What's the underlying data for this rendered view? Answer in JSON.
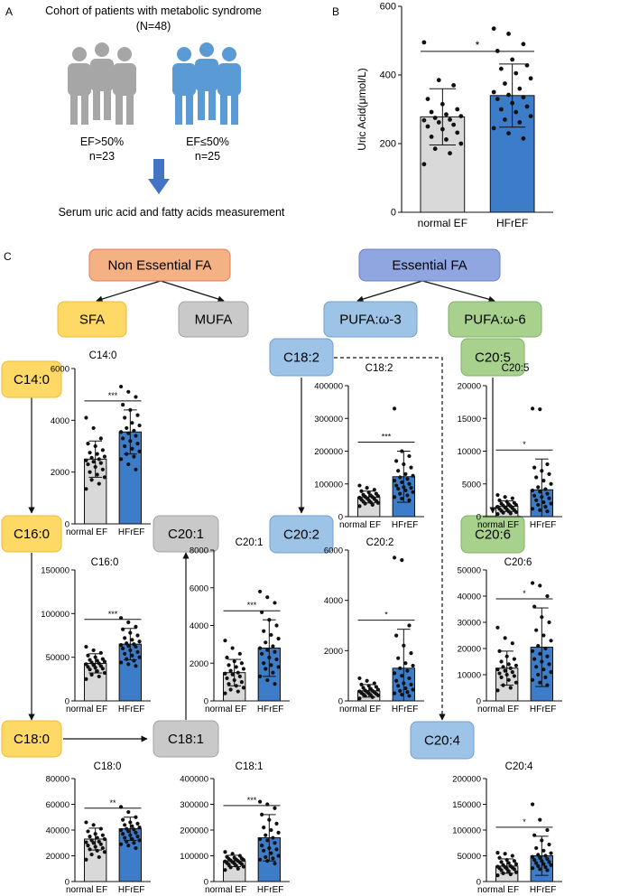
{
  "panel_labels": [
    "A",
    "B",
    "C"
  ],
  "panel_a": {
    "title_line1": "Cohort of patients with metabolic syndrome",
    "title_line2": "(N=48)",
    "group1_line1": "EF>50%",
    "group1_line2": "n=23",
    "group2_line1": "EF≤50%",
    "group2_line2": "n=25",
    "outcome": "Serum uric acid and fatty acids measurement",
    "colors": {
      "group1": "#a6a6a6",
      "group2": "#5b9bd5",
      "arrow": "#4472c4"
    }
  },
  "flow_boxes": [
    {
      "id": "nonessential",
      "label": "Non Essential FA",
      "fill": "#f4b183",
      "stroke": "#e07b5a"
    },
    {
      "id": "essential",
      "label": "Essential FA",
      "fill": "#8fa6e0",
      "stroke": "#6a7fc8"
    },
    {
      "id": "sfa",
      "label": "SFA",
      "fill": "#ffd966",
      "stroke": "#f0b93a"
    },
    {
      "id": "mufa",
      "label": "MUFA",
      "fill": "#c9c9c9",
      "stroke": "#a3a3a3"
    },
    {
      "id": "pufa3",
      "label": "PUFA:ω-3",
      "fill": "#9dc3e6",
      "stroke": "#6f9fcf"
    },
    {
      "id": "pufa6",
      "label": "PUFA:ω-6",
      "fill": "#a9d18e",
      "stroke": "#7fb062"
    },
    {
      "id": "c140",
      "label": "C14:0",
      "fill": "#ffd966",
      "stroke": "#f0b93a"
    },
    {
      "id": "c160",
      "label": "C16:0",
      "fill": "#ffd966",
      "stroke": "#f0b93a"
    },
    {
      "id": "c180",
      "label": "C18:0",
      "fill": "#ffd966",
      "stroke": "#f0b93a"
    },
    {
      "id": "c201",
      "label": "C20:1",
      "fill": "#c9c9c9",
      "stroke": "#a3a3a3"
    },
    {
      "id": "c181",
      "label": "C18:1",
      "fill": "#c9c9c9",
      "stroke": "#a3a3a3"
    },
    {
      "id": "c182",
      "label": "C18:2",
      "fill": "#9dc3e6",
      "stroke": "#6f9fcf"
    },
    {
      "id": "c202",
      "label": "C20:2",
      "fill": "#9dc3e6",
      "stroke": "#6f9fcf"
    },
    {
      "id": "c204",
      "label": "C20:4",
      "fill": "#9dc3e6",
      "stroke": "#6f9fcf"
    },
    {
      "id": "c205",
      "label": "C20:5",
      "fill": "#a9d18e",
      "stroke": "#7fb062"
    },
    {
      "id": "c206",
      "label": "C20:6",
      "fill": "#a9d18e",
      "stroke": "#7fb062"
    }
  ],
  "bar_colors": {
    "normal EF": "#d9d9d9",
    "HFrEF": "#3d7cc9"
  },
  "chart_data": [
    {
      "id": "uric-acid",
      "type": "bar",
      "title": "",
      "ylabel": "Uric Acid(μmol/L)",
      "categories": [
        "normal EF",
        "HFrEF"
      ],
      "values": [
        278,
        340
      ],
      "errors": [
        82,
        92
      ],
      "ylim": [
        0,
        600
      ],
      "yticks": [
        0,
        200,
        400,
        600
      ],
      "yticklabels": [
        "0",
        "200",
        "400",
        "600"
      ],
      "significance": "*",
      "points": [
        [
          495,
          385,
          370,
          330,
          315,
          300,
          292,
          285,
          280,
          275,
          270,
          268,
          262,
          255,
          250,
          242,
          232,
          220,
          212,
          200,
          185,
          172,
          140
        ],
        [
          535,
          520,
          490,
          470,
          445,
          428,
          418,
          405,
          390,
          375,
          360,
          350,
          342,
          335,
          330,
          318,
          308,
          300,
          292,
          280,
          270,
          262,
          245,
          230,
          215
        ]
      ]
    },
    {
      "id": "c14-0",
      "type": "bar",
      "title": "C14:0",
      "ylabel": "",
      "categories": [
        "normal EF",
        "HFrEF"
      ],
      "values": [
        2500,
        3550
      ],
      "errors": [
        700,
        850
      ],
      "ylim": [
        0,
        6000
      ],
      "yticks": [
        0,
        2000,
        4000,
        6000
      ],
      "yticklabels": [
        "0",
        "2000",
        "4000",
        "6000"
      ],
      "significance": "***",
      "points": [
        [
          4100,
          3700,
          3300,
          3100,
          3000,
          2850,
          2750,
          2700,
          2600,
          2550,
          2500,
          2450,
          2400,
          2350,
          2300,
          2200,
          2100,
          2000,
          1900,
          1800,
          1700,
          1550,
          1350
        ],
        [
          5300,
          5100,
          4900,
          4600,
          4400,
          4200,
          4100,
          3900,
          3800,
          3700,
          3600,
          3550,
          3500,
          3400,
          3300,
          3200,
          3100,
          3000,
          2900,
          2800,
          2700,
          2600,
          2500,
          2300,
          2100
        ]
      ]
    },
    {
      "id": "c16-0",
      "type": "bar",
      "title": "C16:0",
      "ylabel": "",
      "categories": [
        "normal EF",
        "HFrEF"
      ],
      "values": [
        43000,
        65000
      ],
      "errors": [
        11000,
        18000
      ],
      "ylim": [
        0,
        150000
      ],
      "yticks": [
        0,
        50000,
        100000,
        150000
      ],
      "yticklabels": [
        "0",
        "50000",
        "100000",
        "150000"
      ],
      "significance": "***",
      "points": [
        [
          62000,
          58000,
          55000,
          52000,
          50000,
          48000,
          47000,
          46000,
          45000,
          44000,
          43000,
          42000,
          41000,
          40000,
          39000,
          38000,
          37000,
          36000,
          34000,
          32000,
          30000,
          28000,
          25000
        ],
        [
          95000,
          90000,
          85000,
          82000,
          78000,
          75000,
          72000,
          70000,
          68000,
          66000,
          65000,
          64000,
          63000,
          62000,
          60000,
          58000,
          56000,
          54000,
          52000,
          50000,
          48000,
          46000,
          44000,
          42000,
          40000
        ]
      ]
    },
    {
      "id": "c18-0",
      "type": "bar",
      "title": "C18:0",
      "ylabel": "",
      "categories": [
        "normal EF",
        "HFrEF"
      ],
      "values": [
        33000,
        41000
      ],
      "errors": [
        8500,
        9000
      ],
      "ylim": [
        0,
        80000
      ],
      "yticks": [
        0,
        20000,
        40000,
        60000,
        80000
      ],
      "yticklabels": [
        "0",
        "20000",
        "40000",
        "60000",
        "80000"
      ],
      "significance": "**",
      "points": [
        [
          46000,
          44000,
          41000,
          39000,
          37000,
          36000,
          35000,
          34000,
          33000,
          32000,
          31000,
          30500,
          30000,
          29000,
          28000,
          27000,
          26000,
          25000,
          24000,
          23000,
          21000,
          19000,
          17000
        ],
        [
          58000,
          54000,
          50000,
          48000,
          46000,
          45000,
          44000,
          43000,
          42000,
          41000,
          40500,
          40000,
          39000,
          38000,
          37000,
          36000,
          35000,
          34000,
          33000,
          32000,
          31000,
          30000,
          29000,
          28000,
          26000
        ]
      ]
    },
    {
      "id": "c20-1",
      "type": "bar",
      "title": "C20:1",
      "ylabel": "",
      "categories": [
        "normal EF",
        "HFrEF"
      ],
      "values": [
        1500,
        2800
      ],
      "errors": [
        700,
        1500
      ],
      "ylim": [
        0,
        8000
      ],
      "yticks": [
        0,
        2000,
        4000,
        6000,
        8000
      ],
      "yticklabels": [
        "0",
        "2000",
        "4000",
        "6000",
        "8000"
      ],
      "significance": "***",
      "points": [
        [
          3200,
          2800,
          2500,
          2300,
          2100,
          2000,
          1900,
          1800,
          1700,
          1600,
          1500,
          1450,
          1400,
          1300,
          1200,
          1100,
          1000,
          900,
          800,
          700,
          600,
          500,
          400
        ],
        [
          5800,
          5500,
          5200,
          4700,
          4300,
          4000,
          3700,
          3500,
          3300,
          3100,
          2900,
          2800,
          2700,
          2600,
          2500,
          2300,
          2200,
          2000,
          1900,
          1800,
          1700,
          1500,
          1300,
          1100,
          900
        ]
      ]
    },
    {
      "id": "c18-1",
      "type": "bar",
      "title": "C18:1",
      "ylabel": "",
      "categories": [
        "normal EF",
        "HFrEF"
      ],
      "values": [
        80000,
        170000
      ],
      "errors": [
        22000,
        90000
      ],
      "ylim": [
        0,
        400000
      ],
      "yticks": [
        0,
        100000,
        200000,
        300000,
        400000
      ],
      "yticklabels": [
        "0",
        "100000",
        "200000",
        "300000",
        "400000"
      ],
      "significance": "***",
      "points": [
        [
          115000,
          108000,
          100000,
          96000,
          92000,
          90000,
          88000,
          86000,
          84000,
          82000,
          80000,
          78000,
          76000,
          74000,
          72000,
          70000,
          68000,
          66000,
          62000,
          58000,
          55000,
          50000,
          45000
        ],
        [
          310000,
          300000,
          285000,
          260000,
          240000,
          225000,
          210000,
          200000,
          190000,
          180000,
          170000,
          165000,
          160000,
          150000,
          140000,
          130000,
          125000,
          120000,
          110000,
          100000,
          95000,
          90000,
          85000,
          80000,
          70000
        ]
      ]
    },
    {
      "id": "c18-2",
      "type": "bar",
      "title": "C18:2",
      "ylabel": "",
      "categories": [
        "normal EF",
        "HFrEF"
      ],
      "values": [
        60000,
        122000
      ],
      "errors": [
        18000,
        78000
      ],
      "ylim": [
        0,
        400000
      ],
      "yticks": [
        0,
        100000,
        200000,
        300000,
        400000
      ],
      "yticklabels": [
        "0",
        "100000",
        "200000",
        "300000",
        "400000"
      ],
      "significance": "***",
      "points": [
        [
          95000,
          88000,
          82000,
          78000,
          74000,
          70000,
          67000,
          65000,
          63000,
          61000,
          60000,
          58000,
          56000,
          54000,
          52000,
          50000,
          48000,
          46000,
          44000,
          42000,
          40000,
          36000,
          32000
        ],
        [
          330000,
          200000,
          185000,
          170000,
          160000,
          150000,
          140000,
          130000,
          125000,
          120000,
          115000,
          110000,
          105000,
          100000,
          95000,
          90000,
          88000,
          85000,
          80000,
          75000,
          70000,
          65000,
          60000,
          55000,
          50000
        ]
      ]
    },
    {
      "id": "c20-2",
      "type": "bar",
      "title": "C20:2",
      "ylabel": "",
      "categories": [
        "normal EF",
        "HFrEF"
      ],
      "values": [
        400,
        1300
      ],
      "errors": [
        250,
        1550
      ],
      "ylim": [
        0,
        6000
      ],
      "yticks": [
        0,
        2000,
        4000,
        6000
      ],
      "yticklabels": [
        "0",
        "2000",
        "4000",
        "6000"
      ],
      "significance": "*",
      "points": [
        [
          900,
          800,
          700,
          650,
          600,
          560,
          520,
          480,
          450,
          420,
          400,
          380,
          360,
          340,
          320,
          300,
          280,
          260,
          240,
          220,
          200,
          150,
          100
        ],
        [
          5700,
          5600,
          3000,
          2600,
          2200,
          1900,
          1700,
          1500,
          1400,
          1300,
          1200,
          1100,
          1000,
          900,
          800,
          700,
          650,
          600,
          500,
          450,
          400,
          350,
          300,
          250,
          200
        ]
      ]
    },
    {
      "id": "c20-4",
      "type": "bar",
      "title": "C20:4",
      "ylabel": "",
      "categories": [
        "normal EF",
        "HFrEF"
      ],
      "values": [
        30000,
        50000
      ],
      "errors": [
        14000,
        38000
      ],
      "ylim": [
        0,
        200000
      ],
      "yticks": [
        0,
        50000,
        100000,
        150000,
        200000
      ],
      "yticklabels": [
        "0",
        "50000",
        "100000",
        "150000",
        "200000"
      ],
      "significance": "*",
      "points": [
        [
          56000,
          54000,
          50000,
          46000,
          42000,
          40000,
          38000,
          36000,
          34000,
          32000,
          30000,
          29000,
          28000,
          27000,
          26000,
          25000,
          24000,
          22000,
          20000,
          18000,
          16000,
          14000,
          12000
        ],
        [
          150000,
          120000,
          100000,
          90000,
          80000,
          72000,
          65000,
          60000,
          55000,
          52000,
          50000,
          48000,
          46000,
          44000,
          42000,
          40000,
          38000,
          36000,
          34000,
          32000,
          30000,
          28000,
          26000,
          24000,
          22000
        ]
      ]
    },
    {
      "id": "c20-5",
      "type": "bar",
      "title": "C20:5",
      "ylabel": "",
      "categories": [
        "normal EF",
        "HFrEF"
      ],
      "values": [
        1600,
        4100
      ],
      "errors": [
        800,
        4700
      ],
      "ylim": [
        0,
        20000
      ],
      "yticks": [
        0,
        5000,
        10000,
        15000,
        20000
      ],
      "yticklabels": [
        "0",
        "5000",
        "10000",
        "15000",
        "20000"
      ],
      "significance": "*",
      "points": [
        [
          3300,
          3000,
          2800,
          2500,
          2300,
          2100,
          2000,
          1900,
          1800,
          1700,
          1600,
          1500,
          1400,
          1300,
          1200,
          1100,
          1000,
          900,
          800,
          700,
          600,
          500,
          400
        ],
        [
          16500,
          16400,
          8000,
          7500,
          7000,
          6500,
          6000,
          5500,
          5000,
          4500,
          4200,
          4000,
          3800,
          3500,
          3200,
          3000,
          2800,
          2500,
          2200,
          2000,
          1800,
          1500,
          1200,
          1000,
          800
        ]
      ]
    },
    {
      "id": "c20-6",
      "type": "bar",
      "title": "C20:6",
      "ylabel": "",
      "categories": [
        "normal EF",
        "HFrEF"
      ],
      "values": [
        12500,
        20500
      ],
      "errors": [
        6500,
        15000
      ],
      "ylim": [
        0,
        50000
      ],
      "yticks": [
        0,
        10000,
        20000,
        30000,
        40000,
        50000
      ],
      "yticklabels": [
        "0",
        "10000",
        "20000",
        "30000",
        "40000",
        "50000"
      ],
      "significance": "*",
      "points": [
        [
          28000,
          24000,
          22000,
          19000,
          17000,
          16000,
          15000,
          14000,
          13500,
          13000,
          12500,
          12000,
          11500,
          11000,
          10500,
          10000,
          9500,
          9000,
          8000,
          7000,
          6000,
          5000,
          4000
        ],
        [
          45000,
          44000,
          40000,
          36000,
          32000,
          30000,
          27000,
          25000,
          23000,
          21000,
          20000,
          19000,
          18000,
          17000,
          16000,
          15000,
          14000,
          13000,
          12000,
          11000,
          10000,
          9000,
          8000,
          7000,
          6000
        ]
      ]
    }
  ]
}
